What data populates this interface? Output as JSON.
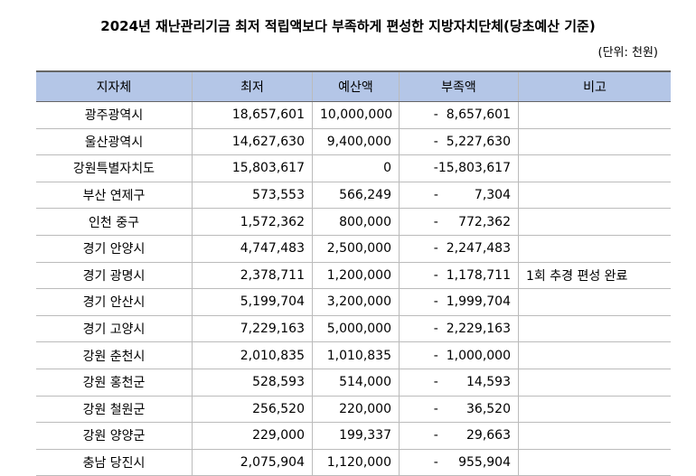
{
  "header": {
    "title": "2024년 재난관리기금 최저 적립액보다 부족하게 편성한 지방자치단체(당초예산 기준)",
    "unit": "(단위: 천원)"
  },
  "table": {
    "columns": [
      "지자체",
      "최저",
      "예산액",
      "부족액",
      "비고"
    ],
    "rows": [
      [
        "광주광역시",
        "18,657,601",
        "10,000,000",
        "-  8,657,601",
        ""
      ],
      [
        "울산광역시",
        "14,627,630",
        "9,400,000",
        "-  5,227,630",
        ""
      ],
      [
        "강원특별자치도",
        "15,803,617",
        "0",
        "-15,803,617",
        ""
      ],
      [
        "부산 연제구",
        "573,553",
        "566,249",
        "-         7,304",
        ""
      ],
      [
        "인천 중구",
        "1,572,362",
        "800,000",
        "-     772,362",
        ""
      ],
      [
        "경기 안양시",
        "4,747,483",
        "2,500,000",
        "-  2,247,483",
        ""
      ],
      [
        "경기 광명시",
        "2,378,711",
        "1,200,000",
        "-  1,178,711",
        "1회 추경 편성 완료"
      ],
      [
        "경기 안산시",
        "5,199,704",
        "3,200,000",
        "-  1,999,704",
        ""
      ],
      [
        "경기 고양시",
        "7,229,163",
        "5,000,000",
        "-  2,229,163",
        ""
      ],
      [
        "강원 춘천시",
        "2,010,835",
        "1,010,835",
        "-  1,000,000",
        ""
      ],
      [
        "강원 홍천군",
        "528,593",
        "514,000",
        "-       14,593",
        ""
      ],
      [
        "강원 철원군",
        "256,520",
        "220,000",
        "-       36,520",
        ""
      ],
      [
        "강원 양양군",
        "229,000",
        "199,337",
        "-       29,663",
        ""
      ],
      [
        "충남 당진시",
        "2,075,904",
        "1,120,000",
        "-     955,904",
        ""
      ]
    ]
  }
}
